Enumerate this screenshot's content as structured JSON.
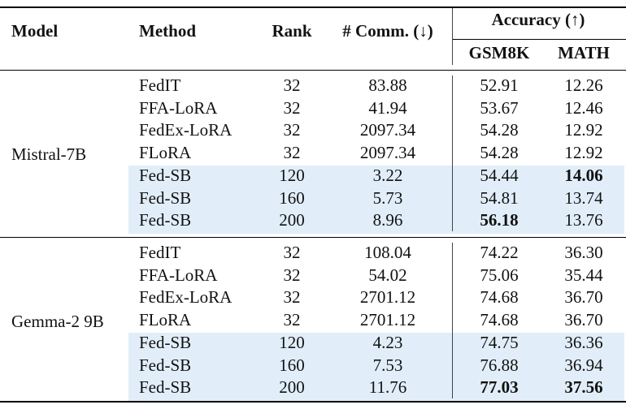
{
  "headers": {
    "model": "Model",
    "method": "Method",
    "rank": "Rank",
    "comm": "# Comm. (↓)",
    "accuracy": "Accuracy (↑)",
    "gsm8k": "GSM8K",
    "math": "MATH"
  },
  "groups": [
    {
      "model": "Mistral-7B",
      "rows": [
        {
          "method": "FedIT",
          "rank": "32",
          "comm": "83.88",
          "gsm8k": "52.91",
          "math": "12.26"
        },
        {
          "method": "FFA-LoRA",
          "rank": "32",
          "comm": "41.94",
          "gsm8k": "53.67",
          "math": "12.46"
        },
        {
          "method": "FedEx-LoRA",
          "rank": "32",
          "comm": "2097.34",
          "gsm8k": "54.28",
          "math": "12.92"
        },
        {
          "method": "FLoRA",
          "rank": "32",
          "comm": "2097.34",
          "gsm8k": "54.28",
          "math": "12.92"
        },
        {
          "method": "Fed-SB",
          "rank": "120",
          "comm": "3.22",
          "gsm8k": "54.44",
          "math": "14.06"
        },
        {
          "method": "Fed-SB",
          "rank": "160",
          "comm": "5.73",
          "gsm8k": "54.81",
          "math": "13.74"
        },
        {
          "method": "Fed-SB",
          "rank": "200",
          "comm": "8.96",
          "gsm8k": "56.18",
          "math": "13.76"
        }
      ]
    },
    {
      "model": "Gemma-2 9B",
      "rows": [
        {
          "method": "FedIT",
          "rank": "32",
          "comm": "108.04",
          "gsm8k": "74.22",
          "math": "36.30"
        },
        {
          "method": "FFA-LoRA",
          "rank": "32",
          "comm": "54.02",
          "gsm8k": "75.06",
          "math": "35.44"
        },
        {
          "method": "FedEx-LoRA",
          "rank": "32",
          "comm": "2701.12",
          "gsm8k": "74.68",
          "math": "36.70"
        },
        {
          "method": "FLoRA",
          "rank": "32",
          "comm": "2701.12",
          "gsm8k": "74.68",
          "math": "36.70"
        },
        {
          "method": "Fed-SB",
          "rank": "120",
          "comm": "4.23",
          "gsm8k": "74.75",
          "math": "36.36"
        },
        {
          "method": "Fed-SB",
          "rank": "160",
          "comm": "7.53",
          "gsm8k": "76.88",
          "math": "36.94"
        },
        {
          "method": "Fed-SB",
          "rank": "200",
          "comm": "11.76",
          "gsm8k": "77.03",
          "math": "37.56"
        }
      ]
    }
  ],
  "highlighted_method": "Fed-SB",
  "highlight_color": "#e1eef9",
  "bold_cells": [
    "0.4.math",
    "0.6.gsm8k",
    "1.6.gsm8k",
    "1.6.math"
  ]
}
